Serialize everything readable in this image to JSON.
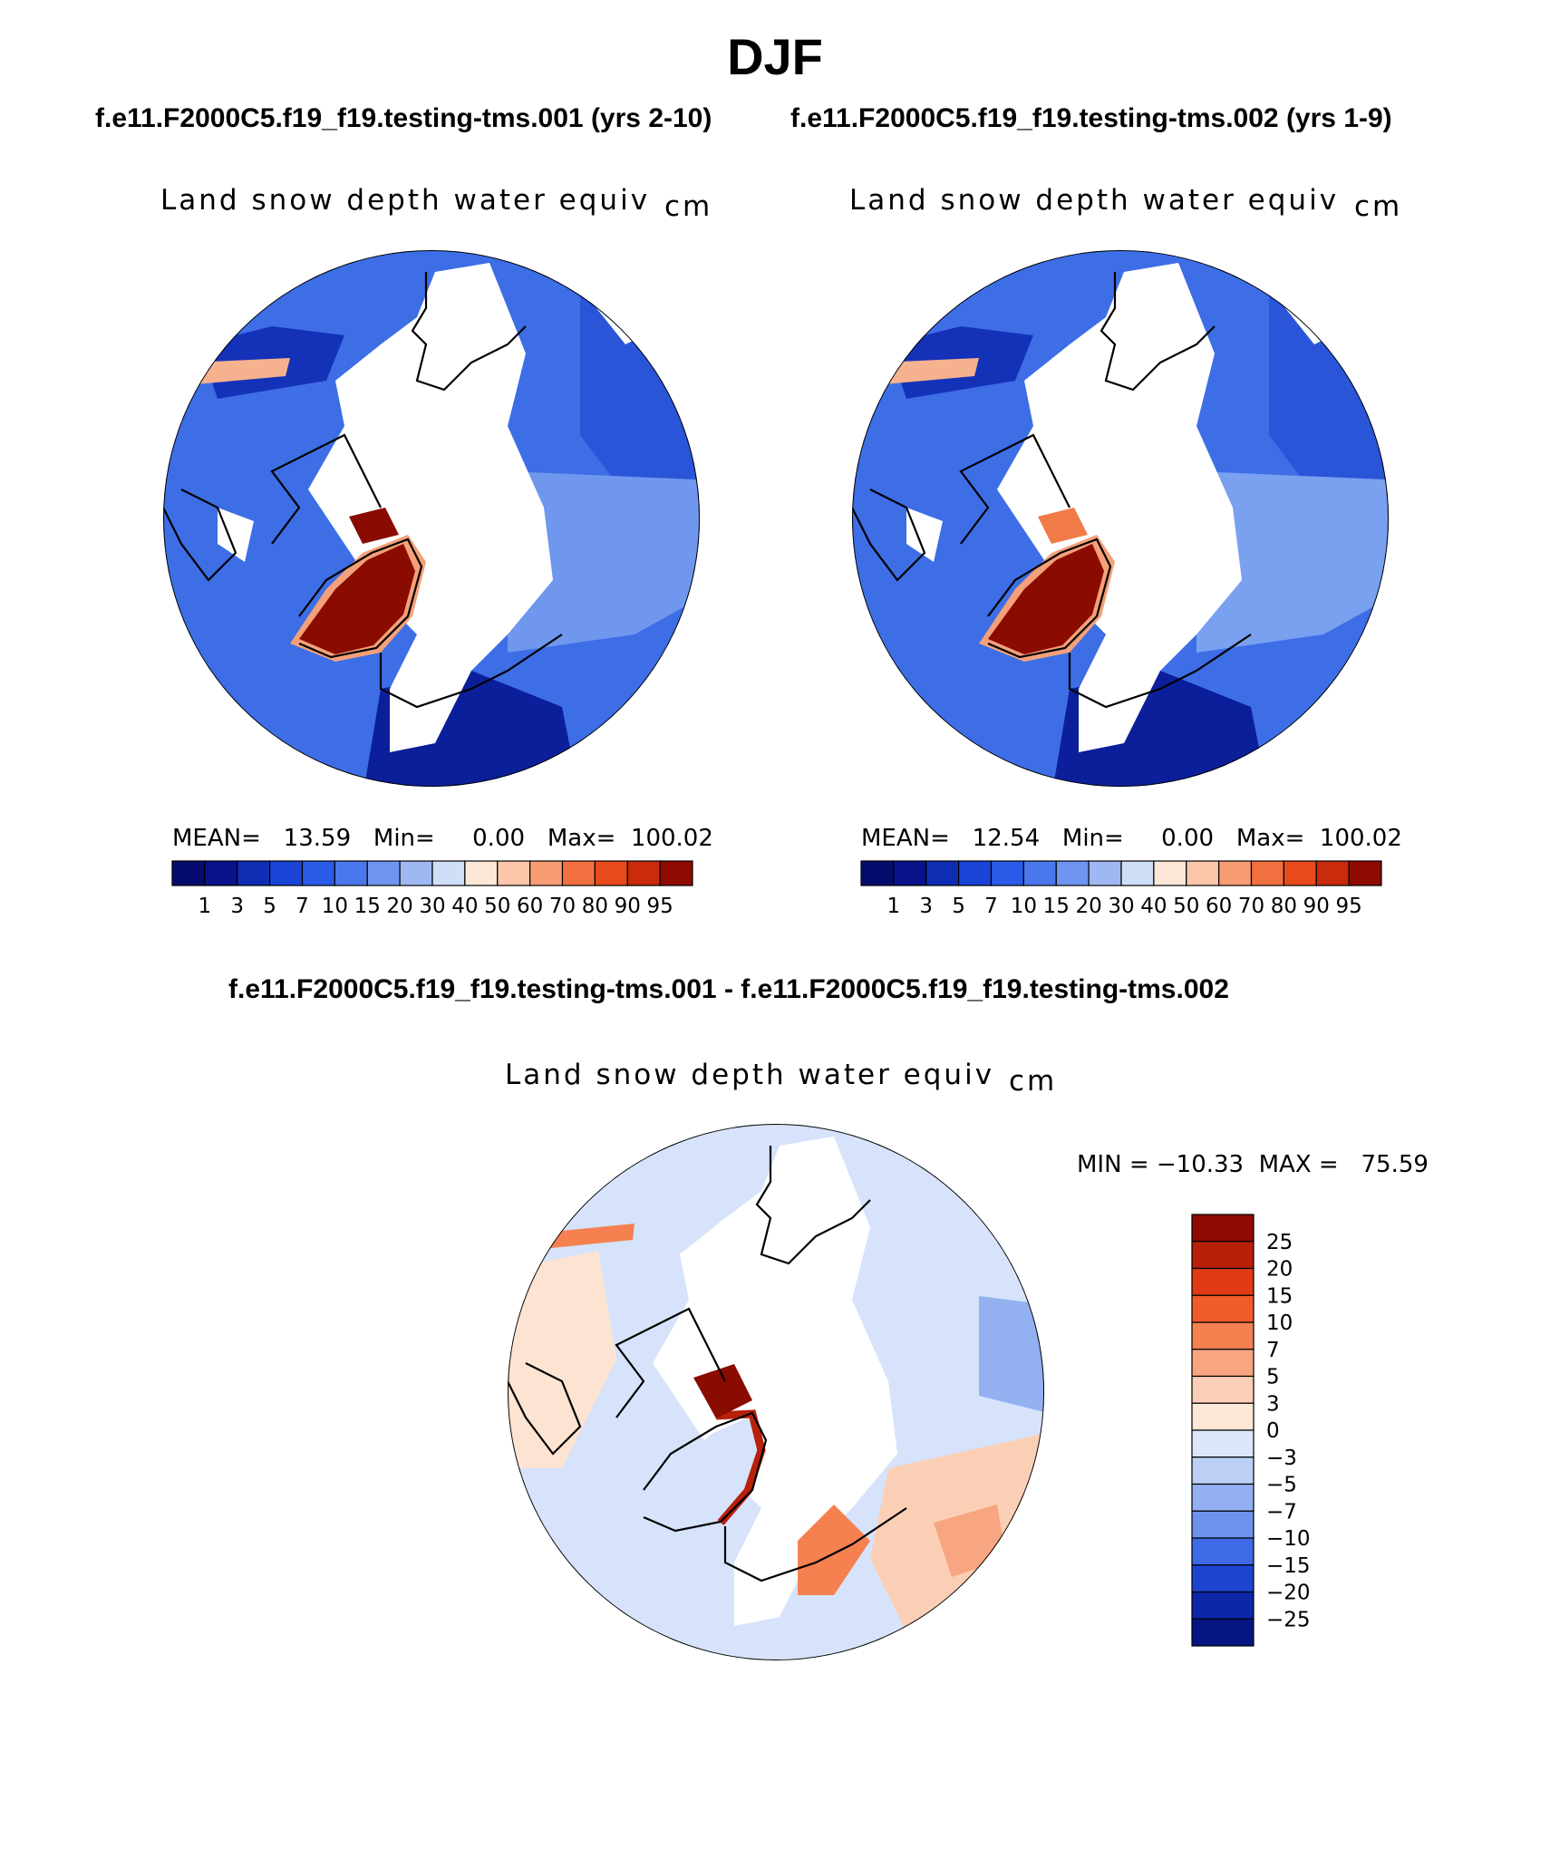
{
  "figure": {
    "title": "DJF",
    "case1_header": "f.e11.F2000C5.f19_f19.testing-tms.001 (yrs 2-10)",
    "case2_header": "f.e11.F2000C5.f19_f19.testing-tms.002 (yrs 1-9)",
    "diff_header": "f.e11.F2000C5.f19_f19.testing-tms.001 - f.e11.F2000C5.f19_f19.testing-tms.002"
  },
  "panels": {
    "left": {
      "title": "Land snow depth water equiv",
      "units": "cm",
      "stats": "MEAN=   13.59   Min=     0.00   Max=  100.02"
    },
    "right": {
      "title": "Land snow depth water equiv",
      "units": "cm",
      "stats": "MEAN=   12.54   Min=     0.00   Max=  100.02"
    },
    "diff": {
      "title": "Land snow depth water equiv",
      "units": "cm",
      "stats": "MIN = −10.33  MAX =   75.59"
    }
  },
  "colorbars": {
    "abs_labels": [
      "1",
      "3",
      "5",
      "7",
      "10",
      "15",
      "20",
      "30",
      "40",
      "50",
      "60",
      "70",
      "80",
      "90",
      "95"
    ],
    "abs_colors": [
      "#08128a",
      "#0f2db3",
      "#1a44d6",
      "#2a5be8",
      "#4a78ec",
      "#6e95ef",
      "#9fb8f3",
      "#cfdff8",
      "#fde8d8",
      "#fbc6aa",
      "#f79b72",
      "#f2703f",
      "#e84a1c",
      "#c92b0c",
      "#8f0a00"
    ],
    "diff_labels": [
      "25",
      "20",
      "15",
      "10",
      "7",
      "5",
      "3",
      "0",
      "−3",
      "−5",
      "−7",
      "−10",
      "−15",
      "−20",
      "−25"
    ],
    "diff_colors": [
      "#8f0a00",
      "#b8200a",
      "#e03b14",
      "#f25c2a",
      "#f58050",
      "#f8a582",
      "#fbcfb6",
      "#fde8d8",
      "#dbe7fb",
      "#bcd0f6",
      "#93b1f1",
      "#6e91ed",
      "#3f6ae5",
      "#1d44d0",
      "#0c26a8",
      "#061583"
    ]
  }
}
